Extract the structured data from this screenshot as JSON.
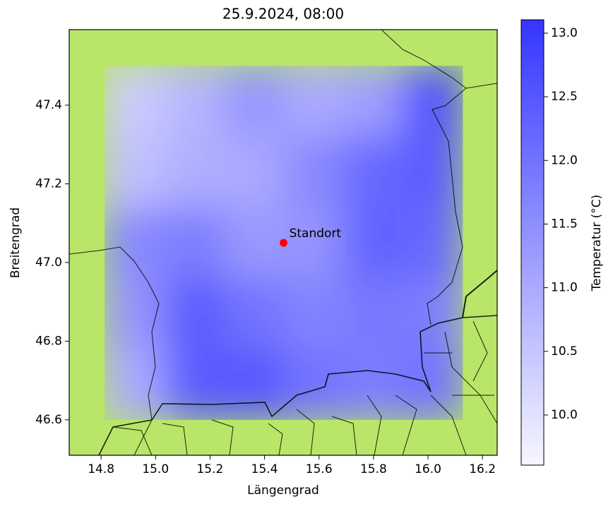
{
  "chart_data": {
    "type": "heatmap",
    "title": "25.9.2024, 08:00",
    "x_label": "Längengrad",
    "y_label": "Breitengrad",
    "colorbar_label": "Temperatur (°C)",
    "xlim": [
      14.683,
      16.254
    ],
    "ylim": [
      46.51,
      47.592
    ],
    "xticks": [
      14.8,
      {
        "value": 15.0,
        "label": "15.0"
      },
      15.2,
      15.4,
      15.6,
      15.8,
      {
        "value": 16.0,
        "label": "16.0"
      },
      16.2
    ],
    "yticks": [
      46.6,
      46.8,
      {
        "value": 47.0,
        "label": "47.0"
      },
      47.2,
      47.4
    ],
    "extent": [
      14.813,
      16.128,
      46.6,
      47.5
    ],
    "z": [
      [
        10.4,
        10.8,
        11.4,
        11.0,
        11.2,
        12.6
      ],
      [
        10.6,
        10.9,
        11.0,
        11.6,
        12.2,
        12.4
      ],
      [
        11.6,
        11.8,
        11.3,
        11.4,
        12.3,
        12.2
      ],
      [
        11.4,
        12.4,
        12.0,
        11.7,
        11.9,
        11.8
      ],
      [
        11.0,
        12.4,
        12.5,
        12.0,
        11.8,
        12.0
      ]
    ],
    "clim": [
      9.606,
      13.105
    ],
    "cticks": [
      {
        "value": 10.0,
        "label": "10.0"
      },
      10.5,
      {
        "value": 11.0,
        "label": "11.0"
      },
      11.5,
      {
        "value": 12.0,
        "label": "12.0"
      },
      12.5,
      {
        "value": 13.0,
        "label": "13.0"
      }
    ],
    "colormap": [
      "#f7f7ff",
      "#3535ff"
    ],
    "background_color": "#b9e569",
    "marker": {
      "label": "Standort",
      "lon": 15.47,
      "lat": 47.05,
      "color": "#ff0000"
    }
  }
}
